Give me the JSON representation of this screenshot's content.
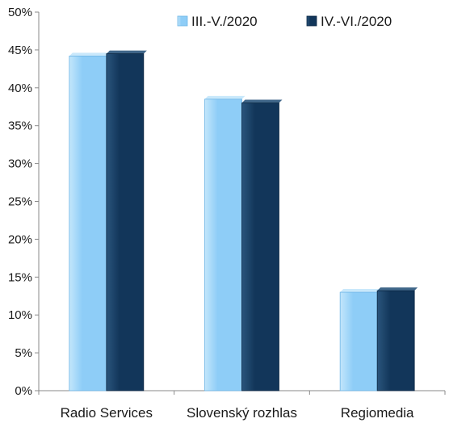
{
  "chart_data": {
    "type": "bar",
    "categories": [
      "Radio Services",
      "Slovenský rozhlas",
      "Regiomedia"
    ],
    "series": [
      {
        "name": "III.-V./2020",
        "values": [
          44.2,
          38.5,
          13.0
        ],
        "color": "#8ecdf7",
        "color_light": "#c3e6fb"
      },
      {
        "name": "IV.-VI./2020",
        "values": [
          44.5,
          38.0,
          13.2
        ],
        "color": "#12365a",
        "color_light": "#2a557c"
      }
    ],
    "ylim": [
      0,
      50
    ],
    "ytick_step": 5,
    "ytick_labels": [
      "0%",
      "5%",
      "10%",
      "15%",
      "20%",
      "25%",
      "30%",
      "35%",
      "40%",
      "45%",
      "50%"
    ],
    "legend_position": "top-right",
    "grid": false,
    "bar_style": "3d-shaded"
  }
}
